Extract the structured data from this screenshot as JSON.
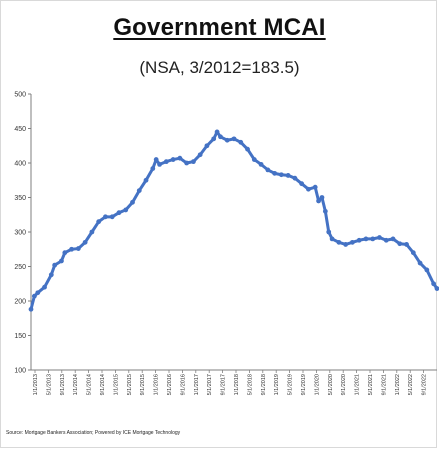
{
  "chart_data": {
    "type": "line",
    "title": "Government MCAI",
    "subtitle": "(NSA, 3/2012=183.5)",
    "source": "Source: Mortgage Bankers Association; Powered by ICE Mortgage Technology",
    "ylim": [
      100,
      500
    ],
    "yticks": [
      "100",
      "150",
      "200",
      "250",
      "300",
      "350",
      "400",
      "450",
      "500"
    ],
    "grid": false,
    "legend": "none",
    "line_color": "#4472c4",
    "x_tick_labels": [
      "1/1/2013",
      "5/1/2013",
      "9/1/2013",
      "1/1/2014",
      "5/1/2014",
      "9/1/2014",
      "1/1/2015",
      "5/1/2015",
      "9/1/2015",
      "1/1/2016",
      "5/1/2016",
      "9/1/2016",
      "1/1/2017",
      "5/1/2017",
      "9/1/2017",
      "1/1/2018",
      "5/1/2018",
      "9/1/2018",
      "1/1/2019",
      "5/1/2019",
      "9/1/2019",
      "1/1/2020",
      "5/1/2020",
      "9/1/2020",
      "1/1/2021",
      "5/1/2021",
      "9/1/2021",
      "1/1/2022",
      "5/1/2022",
      "9/1/2022"
    ],
    "series": [
      {
        "values": [
          {
            "x": "2013-01",
            "y": 188
          },
          {
            "x": "2013-02",
            "y": 207
          },
          {
            "x": "2013-03",
            "y": 212
          },
          {
            "x": "2013-05",
            "y": 220
          },
          {
            "x": "2013-07",
            "y": 238
          },
          {
            "x": "2013-08",
            "y": 252
          },
          {
            "x": "2013-10",
            "y": 258
          },
          {
            "x": "2013-11",
            "y": 270
          },
          {
            "x": "2014-01",
            "y": 275
          },
          {
            "x": "2014-03",
            "y": 276
          },
          {
            "x": "2014-05",
            "y": 285
          },
          {
            "x": "2014-07",
            "y": 300
          },
          {
            "x": "2014-09",
            "y": 315
          },
          {
            "x": "2014-11",
            "y": 322
          },
          {
            "x": "2015-01",
            "y": 322
          },
          {
            "x": "2015-03",
            "y": 328
          },
          {
            "x": "2015-05",
            "y": 332
          },
          {
            "x": "2015-07",
            "y": 343
          },
          {
            "x": "2015-09",
            "y": 360
          },
          {
            "x": "2015-11",
            "y": 375
          },
          {
            "x": "2016-01",
            "y": 392
          },
          {
            "x": "2016-02",
            "y": 405
          },
          {
            "x": "2016-03",
            "y": 398
          },
          {
            "x": "2016-05",
            "y": 402
          },
          {
            "x": "2016-07",
            "y": 405
          },
          {
            "x": "2016-09",
            "y": 407
          },
          {
            "x": "2016-11",
            "y": 400
          },
          {
            "x": "2017-01",
            "y": 402
          },
          {
            "x": "2017-03",
            "y": 412
          },
          {
            "x": "2017-05",
            "y": 425
          },
          {
            "x": "2017-07",
            "y": 435
          },
          {
            "x": "2017-08",
            "y": 445
          },
          {
            "x": "2017-09",
            "y": 438
          },
          {
            "x": "2017-11",
            "y": 433
          },
          {
            "x": "2018-01",
            "y": 435
          },
          {
            "x": "2018-03",
            "y": 430
          },
          {
            "x": "2018-05",
            "y": 420
          },
          {
            "x": "2018-07",
            "y": 405
          },
          {
            "x": "2018-09",
            "y": 398
          },
          {
            "x": "2018-11",
            "y": 390
          },
          {
            "x": "2019-01",
            "y": 385
          },
          {
            "x": "2019-03",
            "y": 383
          },
          {
            "x": "2019-05",
            "y": 382
          },
          {
            "x": "2019-07",
            "y": 378
          },
          {
            "x": "2019-09",
            "y": 370
          },
          {
            "x": "2019-11",
            "y": 362
          },
          {
            "x": "2020-01",
            "y": 365
          },
          {
            "x": "2020-02",
            "y": 345
          },
          {
            "x": "2020-03",
            "y": 350
          },
          {
            "x": "2020-04",
            "y": 330
          },
          {
            "x": "2020-05",
            "y": 300
          },
          {
            "x": "2020-06",
            "y": 290
          },
          {
            "x": "2020-08",
            "y": 285
          },
          {
            "x": "2020-10",
            "y": 282
          },
          {
            "x": "2020-12",
            "y": 285
          },
          {
            "x": "2021-02",
            "y": 288
          },
          {
            "x": "2021-04",
            "y": 290
          },
          {
            "x": "2021-06",
            "y": 290
          },
          {
            "x": "2021-08",
            "y": 292
          },
          {
            "x": "2021-10",
            "y": 288
          },
          {
            "x": "2021-12",
            "y": 290
          },
          {
            "x": "2022-02",
            "y": 283
          },
          {
            "x": "2022-04",
            "y": 282
          },
          {
            "x": "2022-06",
            "y": 270
          },
          {
            "x": "2022-08",
            "y": 255
          },
          {
            "x": "2022-10",
            "y": 245
          },
          {
            "x": "2022-12",
            "y": 225
          },
          {
            "x": "2023-01",
            "y": 218
          }
        ]
      }
    ]
  }
}
